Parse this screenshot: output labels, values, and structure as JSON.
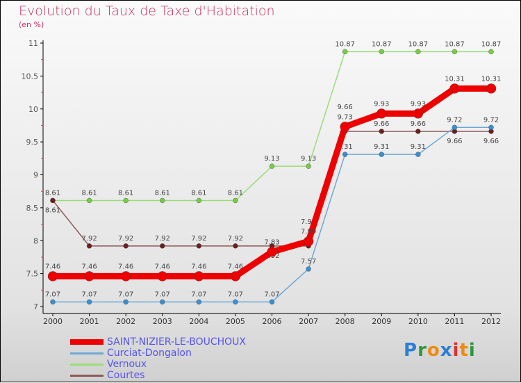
{
  "chart_data": {
    "type": "line",
    "title": "Evolution du Taux de Taxe d'Habitation",
    "subtitle": "(en %)",
    "xlabel": "",
    "ylabel": "",
    "ylim": [
      7,
      11
    ],
    "y_ticks": [
      "7",
      "7.5",
      "8",
      "8.5",
      "9",
      "9.5",
      "10",
      "10.5",
      "11"
    ],
    "x": [
      "2000",
      "2001",
      "2002",
      "2003",
      "2004",
      "2005",
      "2006",
      "2007",
      "2008",
      "2009",
      "2010",
      "2011",
      "2012"
    ],
    "series": [
      {
        "name": "SAINT-NIZIER-LE-BOUCHOUX",
        "color": "#ee0000",
        "values": [
          7.46,
          7.46,
          7.46,
          7.46,
          7.46,
          7.46,
          7.83,
          7.99,
          9.73,
          9.93,
          9.93,
          10.31,
          10.31
        ]
      },
      {
        "name": "Curciat-Dongalon",
        "color": "#6fa8d6",
        "values": [
          7.07,
          7.07,
          7.07,
          7.07,
          7.07,
          7.07,
          7.07,
          7.57,
          9.31,
          9.31,
          9.31,
          9.72,
          9.72
        ]
      },
      {
        "name": "Vernoux",
        "color": "#99dd77",
        "values": [
          8.61,
          8.61,
          8.61,
          8.61,
          8.61,
          8.61,
          9.13,
          9.13,
          10.87,
          10.87,
          10.87,
          10.87,
          10.87
        ]
      },
      {
        "name": "Courtes",
        "color": "#8b5a5a",
        "values": [
          8.61,
          7.92,
          7.92,
          7.92,
          7.92,
          7.92,
          7.92,
          7.92,
          9.66,
          9.66,
          9.66,
          9.66,
          9.66
        ]
      }
    ],
    "legend_position": "bottom-left",
    "grid": false
  },
  "logo": {
    "text": "Proxiti"
  }
}
